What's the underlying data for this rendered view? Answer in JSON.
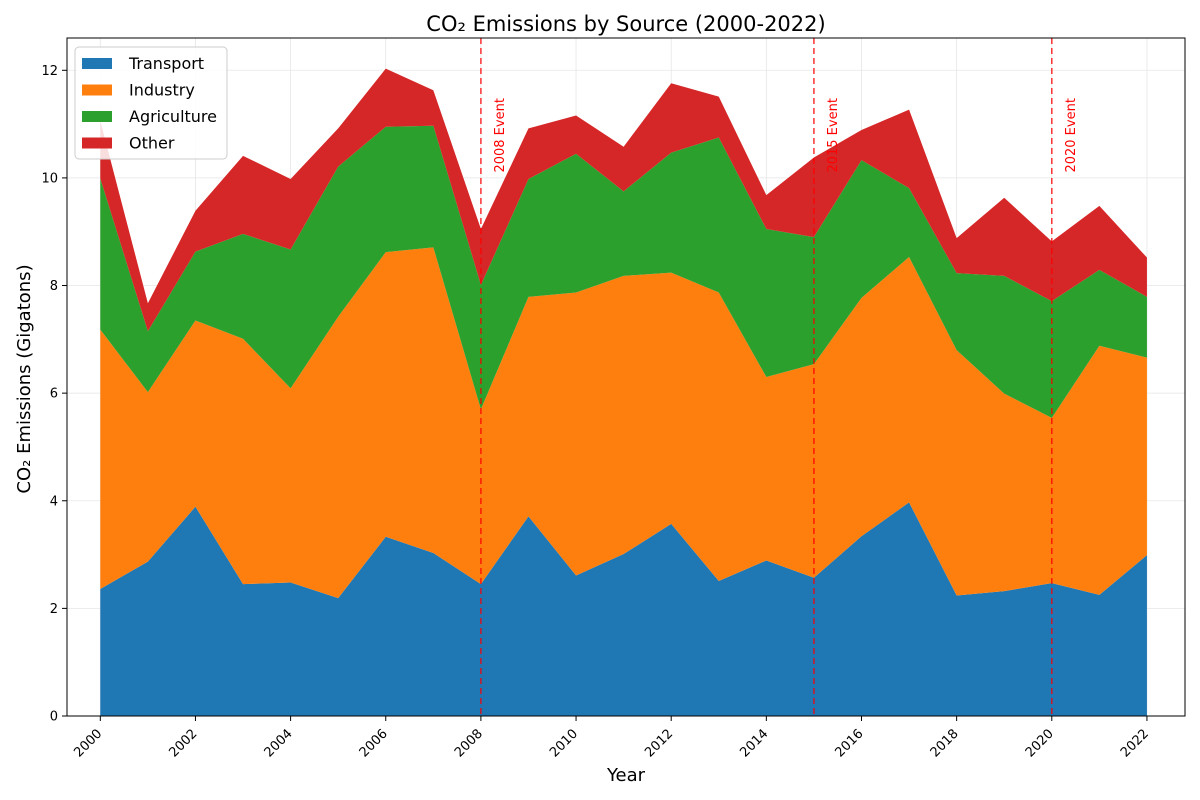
{
  "chart_data": {
    "type": "area",
    "stacked": true,
    "title": "CO₂ Emissions by Source (2000-2022)",
    "xlabel": "Year",
    "ylabel": "CO₂ Emissions (Gigatons)",
    "x": [
      2000,
      2001,
      2002,
      2003,
      2004,
      2005,
      2006,
      2007,
      2008,
      2009,
      2010,
      2011,
      2012,
      2013,
      2014,
      2015,
      2016,
      2017,
      2018,
      2019,
      2020,
      2021,
      2022
    ],
    "xlim": [
      1999.3,
      2022.8
    ],
    "ylim": [
      0,
      12.6
    ],
    "x_ticks": [
      2000,
      2002,
      2004,
      2006,
      2008,
      2010,
      2012,
      2014,
      2016,
      2018,
      2020,
      2022
    ],
    "y_ticks": [
      0,
      2,
      4,
      6,
      8,
      10,
      12
    ],
    "grid": true,
    "legend_position": "top-left",
    "series": [
      {
        "name": "Transport",
        "color": "#1f77b4",
        "values": [
          2.36,
          2.87,
          3.89,
          2.45,
          2.48,
          2.19,
          3.33,
          3.03,
          2.45,
          3.71,
          2.61,
          3.01,
          3.57,
          2.51,
          2.89,
          2.57,
          3.34,
          3.97,
          2.24,
          2.32,
          2.47,
          2.25,
          2.99
        ]
      },
      {
        "name": "Industry",
        "color": "#ff7f0e",
        "values": [
          4.82,
          3.15,
          3.46,
          4.56,
          3.61,
          5.23,
          5.29,
          5.68,
          3.25,
          4.08,
          5.26,
          5.17,
          4.67,
          5.36,
          3.41,
          3.97,
          4.43,
          4.56,
          4.56,
          3.67,
          3.07,
          4.63,
          3.67
        ]
      },
      {
        "name": "Agriculture",
        "color": "#2ca02c",
        "values": [
          2.81,
          1.13,
          1.28,
          1.95,
          2.58,
          2.79,
          2.33,
          2.26,
          2.31,
          2.19,
          2.58,
          1.57,
          2.23,
          2.88,
          2.75,
          2.36,
          2.56,
          1.28,
          1.43,
          2.19,
          2.17,
          1.41,
          1.13
        ]
      },
      {
        "name": "Other",
        "color": "#d62728",
        "values": [
          1.07,
          0.52,
          0.76,
          1.45,
          1.31,
          0.71,
          1.08,
          0.66,
          1.04,
          0.94,
          0.71,
          0.83,
          1.29,
          0.76,
          0.63,
          1.48,
          0.56,
          1.46,
          0.65,
          1.45,
          1.11,
          1.19,
          0.73
        ]
      }
    ],
    "annotations": [
      {
        "x": 2008,
        "label": "2008 Event",
        "color": "#ff0000"
      },
      {
        "x": 2015,
        "label": "2015 Event",
        "color": "#ff0000"
      },
      {
        "x": 2020,
        "label": "2020 Event",
        "color": "#ff0000"
      }
    ]
  }
}
